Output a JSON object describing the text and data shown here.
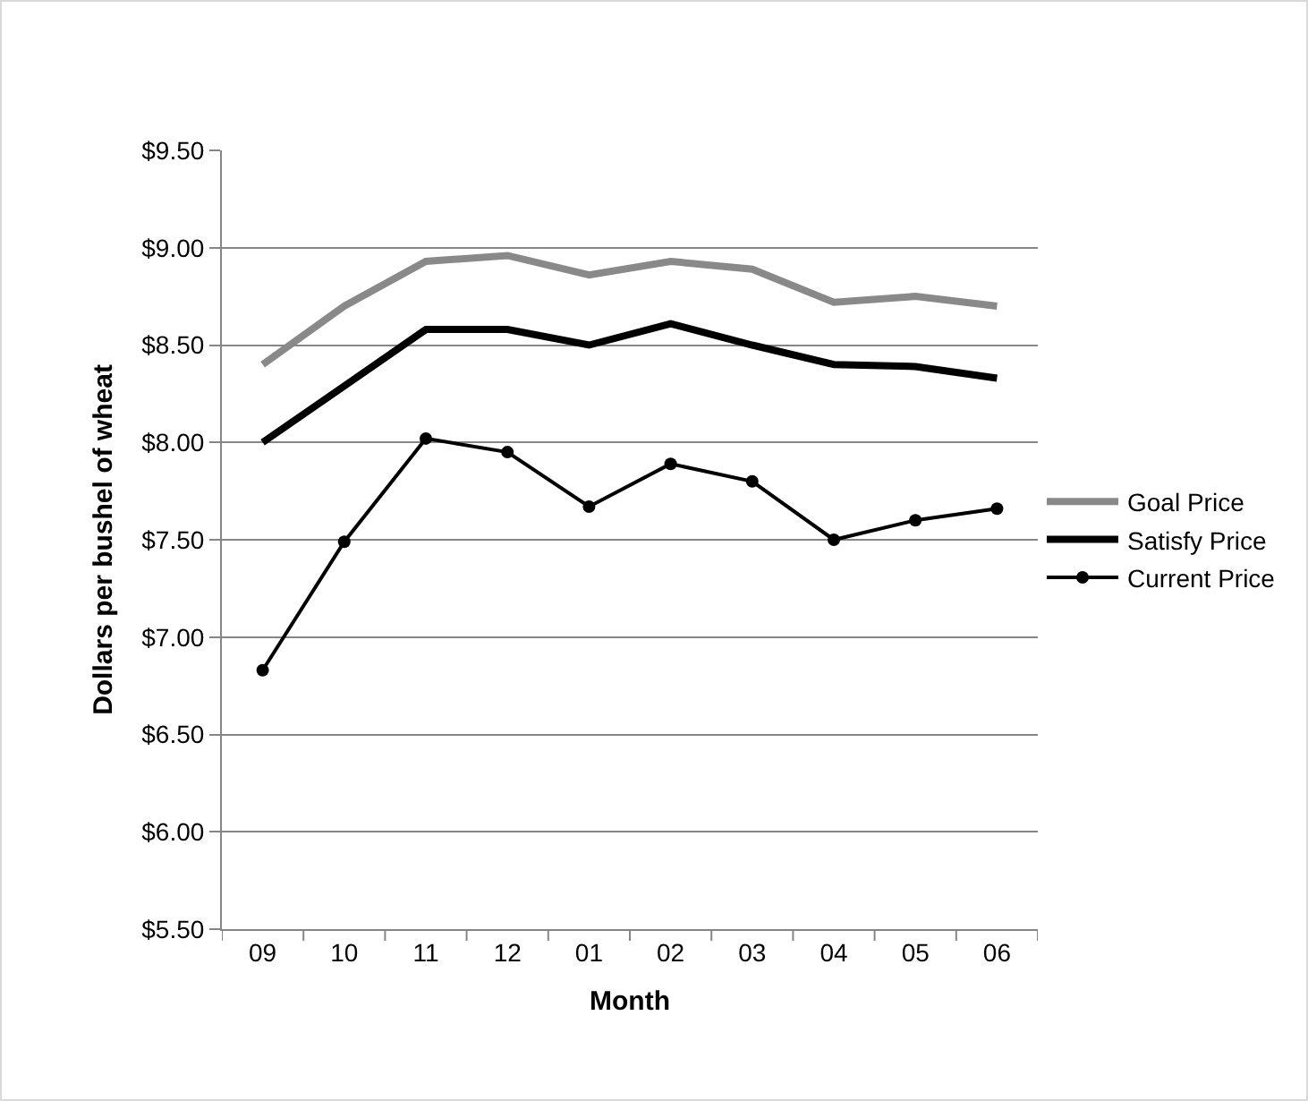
{
  "chart_data": {
    "type": "line",
    "xlabel": "Month",
    "ylabel": "Dollars per bushel of wheat",
    "categories": [
      "09",
      "10",
      "11",
      "12",
      "01",
      "02",
      "03",
      "04",
      "05",
      "06"
    ],
    "series": [
      {
        "name": "Goal Price",
        "color": "#898989",
        "values": [
          8.4,
          8.7,
          8.93,
          8.96,
          8.86,
          8.93,
          8.89,
          8.72,
          8.75,
          8.7
        ],
        "marker": "none"
      },
      {
        "name": "Satisfy Price",
        "color": "#000000",
        "values": [
          8.0,
          8.29,
          8.58,
          8.58,
          8.5,
          8.61,
          8.5,
          8.4,
          8.39,
          8.33
        ],
        "marker": "none"
      },
      {
        "name": "Current Price",
        "color": "#000000",
        "values": [
          6.83,
          7.49,
          8.02,
          7.95,
          7.67,
          7.89,
          7.8,
          7.5,
          7.6,
          7.66
        ],
        "marker": "circle"
      }
    ],
    "ylim": [
      5.5,
      9.5
    ],
    "yticks": [
      {
        "value": 5.5,
        "label": "$5.50"
      },
      {
        "value": 6,
        "label": "$6.00"
      },
      {
        "value": 6.5,
        "label": "$6.50"
      },
      {
        "value": 7,
        "label": "$7.00"
      },
      {
        "value": 7.5,
        "label": "$7.50"
      },
      {
        "value": 8,
        "label": "$8.00"
      },
      {
        "value": 8.5,
        "label": "$8.50"
      },
      {
        "value": 9,
        "label": "$9.00"
      },
      {
        "value": 9.5,
        "label": "$9.50"
      }
    ],
    "grid": "y",
    "legend": "right"
  }
}
